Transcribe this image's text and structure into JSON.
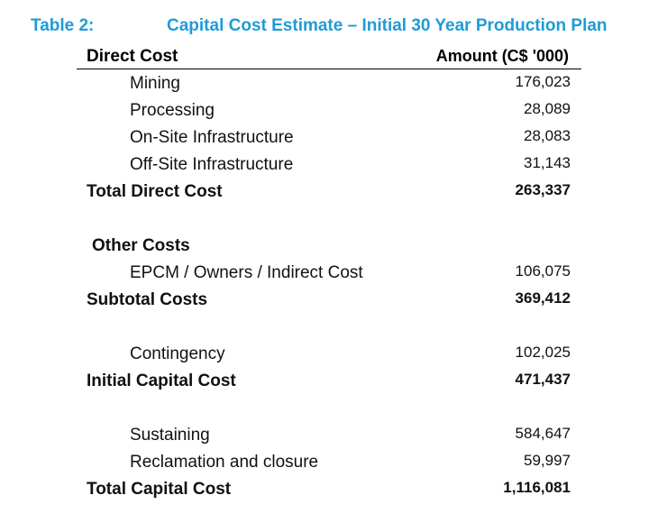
{
  "table": {
    "number": "Table 2:",
    "title": "Capital Cost Estimate – Initial 30 Year Production Plan",
    "header": {
      "label": "Direct Cost",
      "amount": "Amount (C$ '000)"
    },
    "rows": [
      {
        "label": "Mining",
        "amount": "176,023"
      },
      {
        "label": "Processing",
        "amount": "28,089"
      },
      {
        "label": "On-Site Infrastructure",
        "amount": "28,083"
      },
      {
        "label": "Off-Site Infrastructure",
        "amount": "31,143"
      },
      {
        "label": "Total Direct Cost",
        "amount": "263,337"
      },
      {
        "label": "Other Costs",
        "amount": ""
      },
      {
        "label": "EPCM / Owners / Indirect Cost",
        "amount": "106,075"
      },
      {
        "label": "Subtotal Costs",
        "amount": "369,412"
      },
      {
        "label": "Contingency",
        "amount": "102,025"
      },
      {
        "label": "Initial Capital Cost",
        "amount": "471,437"
      },
      {
        "label": "Sustaining",
        "amount": "584,647"
      },
      {
        "label": "Reclamation and closure",
        "amount": "59,997"
      },
      {
        "label": "Total Capital Cost",
        "amount": "1,116,081"
      }
    ]
  }
}
